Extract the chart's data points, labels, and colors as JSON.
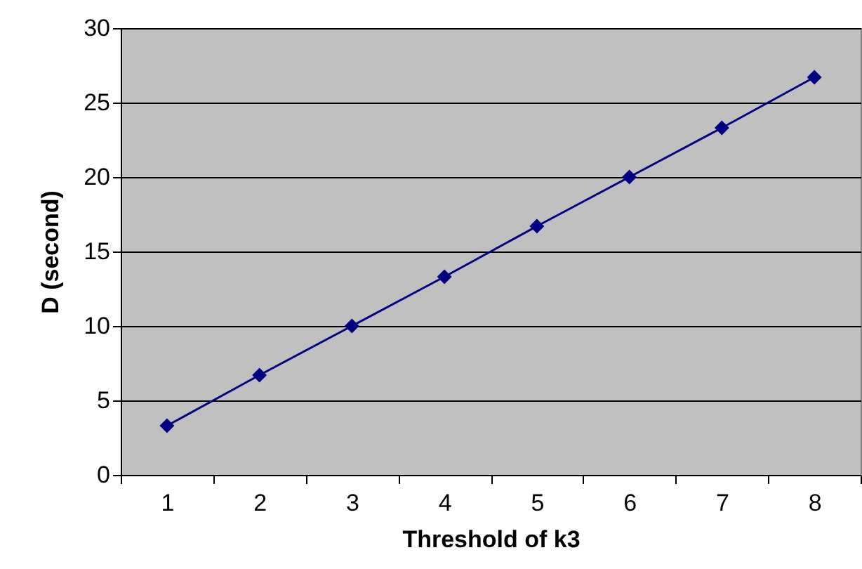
{
  "chart_data": {
    "type": "line",
    "xlabel": "Threshold of k3",
    "ylabel": "D (second)",
    "categories": [
      "1",
      "2",
      "3",
      "4",
      "5",
      "6",
      "7",
      "8"
    ],
    "series": [
      {
        "color": "#000080",
        "values": [
          3.3,
          6.7,
          10,
          13.3,
          16.7,
          20,
          23.3,
          26.7
        ]
      }
    ],
    "ylim": [
      0,
      30
    ],
    "yticks": [
      0,
      5,
      10,
      15,
      20,
      25,
      30
    ],
    "grid": "y",
    "marker": "diamond",
    "line_style": "solid"
  }
}
